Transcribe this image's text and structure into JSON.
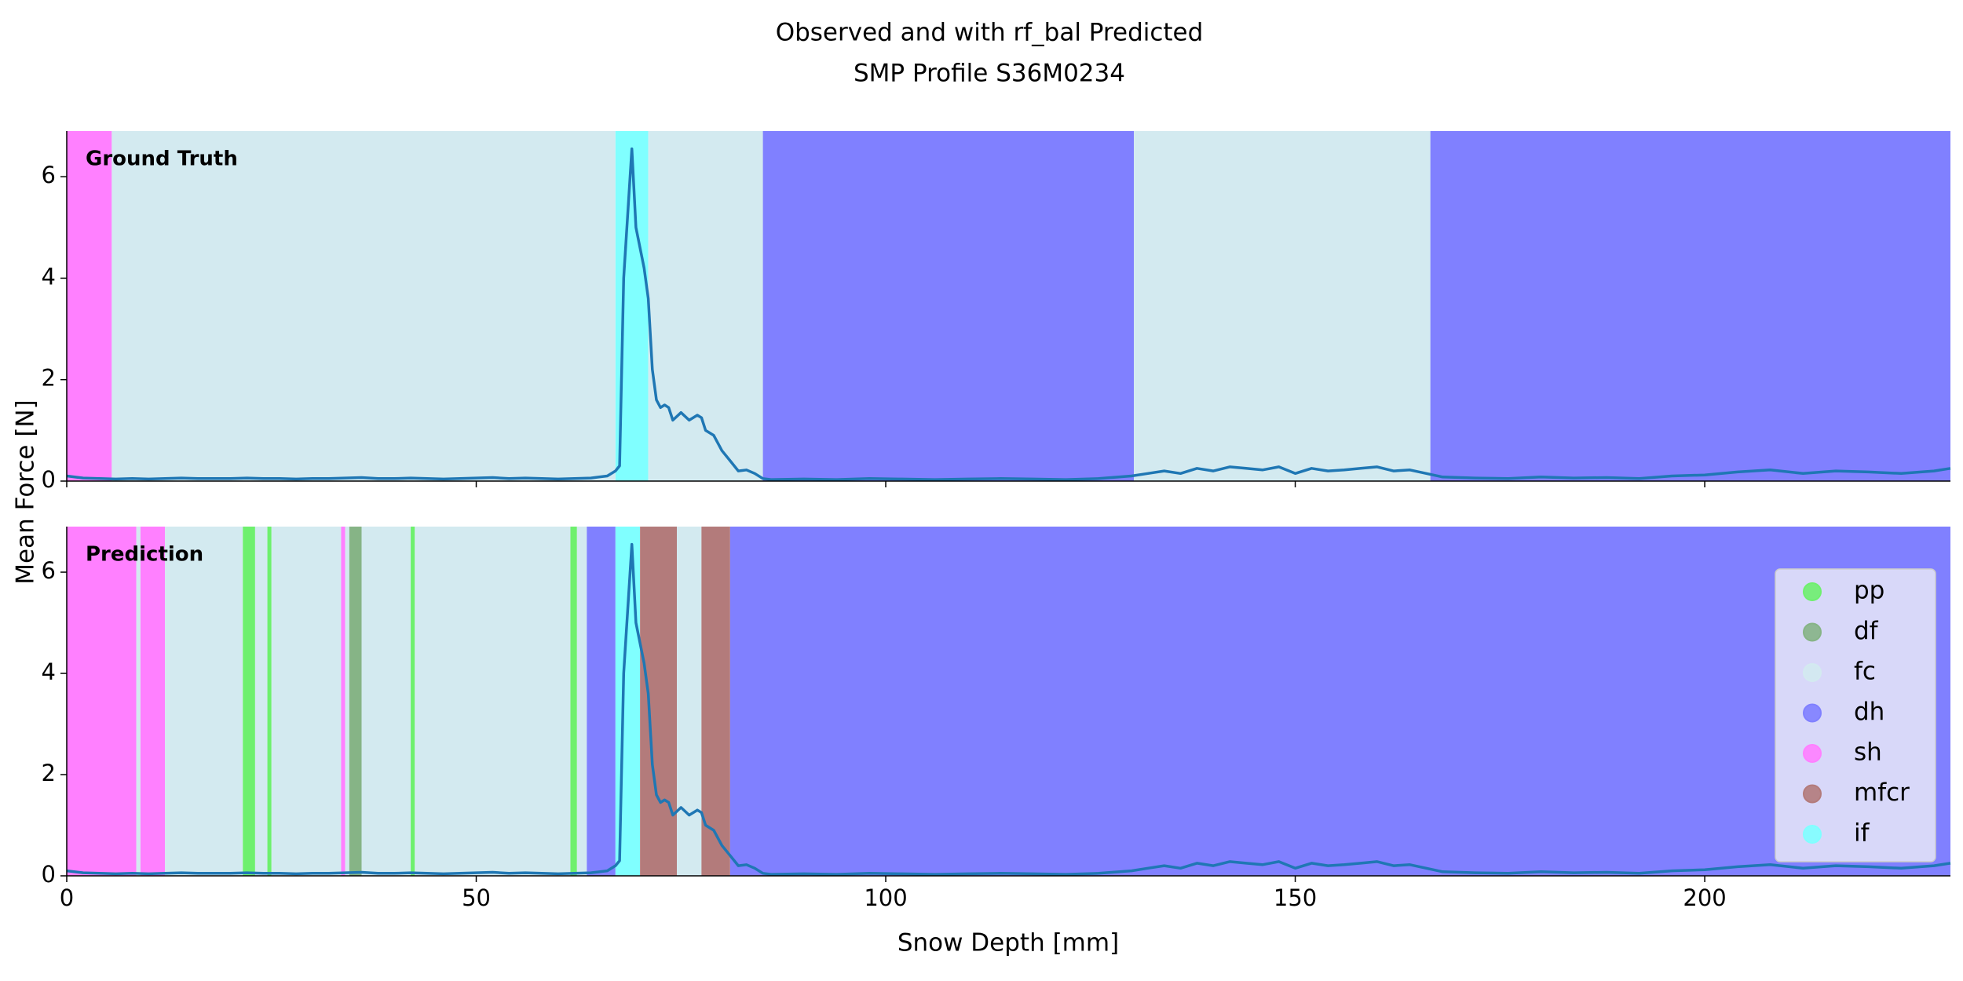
{
  "chart_data": {
    "type": "line",
    "title": [
      "Observed and with rf_bal Predicted",
      "SMP Profile S36M0234"
    ],
    "x_label": "Snow Depth [mm]",
    "y_label": "Mean Force [N]",
    "xlim": [
      0,
      230
    ],
    "xticks": [
      0,
      50,
      100,
      150,
      200
    ],
    "ylim": [
      0,
      6.9
    ],
    "yticks": [
      0,
      2,
      4,
      6
    ],
    "color": "#1f77b4",
    "x": [
      0,
      2,
      4,
      6,
      8,
      10,
      12,
      14,
      16,
      18,
      20,
      22,
      24,
      26,
      28,
      30,
      32,
      34,
      36,
      38,
      40,
      42,
      44,
      46,
      48,
      50,
      52,
      54,
      56,
      58,
      60,
      62,
      64,
      66,
      67,
      67.5,
      68,
      69,
      69.5,
      70.5,
      71,
      71.5,
      72,
      72.5,
      73,
      73.5,
      74,
      75,
      76,
      77,
      77.5,
      78,
      79,
      80,
      81,
      82,
      83,
      84,
      85,
      86,
      90,
      94,
      98,
      102,
      106,
      110,
      114,
      118,
      122,
      126,
      130,
      132,
      134,
      136,
      138,
      140,
      142,
      144,
      146,
      148,
      150,
      152,
      154,
      156,
      158,
      160,
      162,
      164,
      166,
      168,
      172,
      176,
      180,
      184,
      188,
      192,
      196,
      200,
      204,
      208,
      212,
      216,
      220,
      224,
      228,
      230
    ],
    "values": [
      0.1,
      0.06,
      0.05,
      0.04,
      0.05,
      0.04,
      0.05,
      0.06,
      0.05,
      0.05,
      0.05,
      0.06,
      0.05,
      0.05,
      0.04,
      0.05,
      0.05,
      0.06,
      0.07,
      0.05,
      0.05,
      0.06,
      0.05,
      0.04,
      0.05,
      0.06,
      0.07,
      0.05,
      0.06,
      0.05,
      0.04,
      0.05,
      0.06,
      0.1,
      0.2,
      0.3,
      4.0,
      6.55,
      5.0,
      4.2,
      3.6,
      2.2,
      1.6,
      1.45,
      1.5,
      1.45,
      1.2,
      1.35,
      1.2,
      1.3,
      1.25,
      1.0,
      0.9,
      0.6,
      0.4,
      0.2,
      0.22,
      0.15,
      0.05,
      0.03,
      0.04,
      0.03,
      0.05,
      0.04,
      0.03,
      0.04,
      0.05,
      0.04,
      0.03,
      0.05,
      0.1,
      0.15,
      0.2,
      0.15,
      0.25,
      0.2,
      0.28,
      0.25,
      0.22,
      0.28,
      0.15,
      0.25,
      0.2,
      0.22,
      0.25,
      0.28,
      0.2,
      0.22,
      0.15,
      0.08,
      0.06,
      0.05,
      0.08,
      0.06,
      0.07,
      0.05,
      0.1,
      0.12,
      0.18,
      0.22,
      0.15,
      0.2,
      0.18,
      0.15,
      0.2,
      0.25
    ],
    "classes": [
      {
        "name": "pp",
        "color": "#6ef06e"
      },
      {
        "name": "df",
        "color": "#86b486"
      },
      {
        "name": "fc",
        "color": "#d3eaf0"
      },
      {
        "name": "dh",
        "color": "#8080ff"
      },
      {
        "name": "sh",
        "color": "#ff80ff"
      },
      {
        "name": "mfcr",
        "color": "#b37b7b"
      },
      {
        "name": "if",
        "color": "#80ffff"
      }
    ],
    "panels": [
      {
        "label": "Ground Truth",
        "segments": [
          {
            "class": "sh",
            "start": 0,
            "end": 5.5
          },
          {
            "class": "fc",
            "start": 5.5,
            "end": 67
          },
          {
            "class": "if",
            "start": 67,
            "end": 71
          },
          {
            "class": "fc",
            "start": 71,
            "end": 85
          },
          {
            "class": "dh",
            "start": 85,
            "end": 130.3
          },
          {
            "class": "fc",
            "start": 130.3,
            "end": 166.5
          },
          {
            "class": "dh",
            "start": 166.5,
            "end": 230
          }
        ]
      },
      {
        "label": "Prediction",
        "segments": [
          {
            "class": "sh",
            "start": 0,
            "end": 8.5
          },
          {
            "class": "fc",
            "start": 8.5,
            "end": 9
          },
          {
            "class": "sh",
            "start": 9,
            "end": 12
          },
          {
            "class": "fc",
            "start": 12,
            "end": 21.5
          },
          {
            "class": "pp",
            "start": 21.5,
            "end": 23
          },
          {
            "class": "fc",
            "start": 23,
            "end": 24.5
          },
          {
            "class": "pp",
            "start": 24.5,
            "end": 25
          },
          {
            "class": "fc",
            "start": 25,
            "end": 33.5
          },
          {
            "class": "sh",
            "start": 33.5,
            "end": 34
          },
          {
            "class": "fc",
            "start": 34,
            "end": 34.5
          },
          {
            "class": "df",
            "start": 34.5,
            "end": 36
          },
          {
            "class": "fc",
            "start": 36,
            "end": 42
          },
          {
            "class": "pp",
            "start": 42,
            "end": 42.5
          },
          {
            "class": "fc",
            "start": 42.5,
            "end": 61.5
          },
          {
            "class": "pp",
            "start": 61.5,
            "end": 62.3
          },
          {
            "class": "fc",
            "start": 62.3,
            "end": 63.5
          },
          {
            "class": "dh",
            "start": 63.5,
            "end": 67
          },
          {
            "class": "if",
            "start": 67,
            "end": 70
          },
          {
            "class": "mfcr",
            "start": 70,
            "end": 74.5
          },
          {
            "class": "fc",
            "start": 74.5,
            "end": 77.5
          },
          {
            "class": "mfcr",
            "start": 77.5,
            "end": 81
          },
          {
            "class": "dh",
            "start": 81,
            "end": 230
          }
        ]
      }
    ]
  }
}
